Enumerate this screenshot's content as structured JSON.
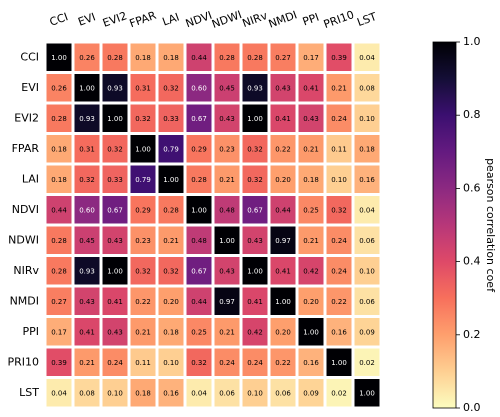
{
  "chart_data": {
    "type": "heatmap",
    "categories": [
      "CCI",
      "EVI",
      "EVI2",
      "FPAR",
      "LAI",
      "NDVI",
      "NDWI",
      "NIRv",
      "NMDI",
      "PPI",
      "PRI10",
      "LST"
    ],
    "values": [
      [
        1,
        0.26,
        0.28,
        0.18,
        0.18,
        0.44,
        0.28,
        0.28,
        0.27,
        0.17,
        0.39,
        0.04
      ],
      [
        0.26,
        1,
        0.93,
        0.31,
        0.32,
        0.6,
        0.45,
        0.93,
        0.43,
        0.41,
        0.21,
        0.08
      ],
      [
        0.28,
        0.93,
        1,
        0.32,
        0.33,
        0.67,
        0.43,
        1,
        0.41,
        0.43,
        0.24,
        0.1
      ],
      [
        0.18,
        0.31,
        0.32,
        1,
        0.79,
        0.29,
        0.23,
        0.32,
        0.22,
        0.21,
        0.11,
        0.18
      ],
      [
        0.18,
        0.32,
        0.33,
        0.79,
        1,
        0.28,
        0.21,
        0.32,
        0.2,
        0.18,
        0.1,
        0.16
      ],
      [
        0.44,
        0.6,
        0.67,
        0.29,
        0.28,
        1,
        0.48,
        0.67,
        0.44,
        0.25,
        0.32,
        0.04
      ],
      [
        0.28,
        0.45,
        0.43,
        0.23,
        0.21,
        0.48,
        1,
        0.43,
        0.97,
        0.21,
        0.24,
        0.06
      ],
      [
        0.28,
        0.93,
        1,
        0.32,
        0.32,
        0.67,
        0.43,
        1,
        0.41,
        0.42,
        0.24,
        0.1
      ],
      [
        0.27,
        0.43,
        0.41,
        0.22,
        0.2,
        0.44,
        0.97,
        0.41,
        1,
        0.2,
        0.22,
        0.06
      ],
      [
        0.17,
        0.41,
        0.43,
        0.21,
        0.18,
        0.25,
        0.21,
        0.42,
        0.2,
        1,
        0.16,
        0.09
      ],
      [
        0.39,
        0.21,
        0.24,
        0.11,
        0.1,
        0.32,
        0.24,
        0.24,
        0.22,
        0.16,
        1,
        0.02
      ],
      [
        0.04,
        0.08,
        0.1,
        0.18,
        0.16,
        0.04,
        0.06,
        0.1,
        0.06,
        0.09,
        0.02,
        1
      ]
    ],
    "value_labels": [
      [
        "1.00",
        "0.26",
        "0.28",
        "0.18",
        "0.18",
        "0.44",
        "0.28",
        "0.28",
        "0.27",
        "0.17",
        "0.39",
        "0.04"
      ],
      [
        "0.26",
        "1.00",
        "0.93",
        "0.31",
        "0.32",
        "0.60",
        "0.45",
        "0.93",
        "0.43",
        "0.41",
        "0.21",
        "0.08"
      ],
      [
        "0.28",
        "0.93",
        "1.00",
        "0.32",
        "0.33",
        "0.67",
        "0.43",
        "1.00",
        "0.41",
        "0.43",
        "0.24",
        "0.10"
      ],
      [
        "0.18",
        "0.31",
        "0.32",
        "1.00",
        "0.79",
        "0.29",
        "0.23",
        "0.32",
        "0.22",
        "0.21",
        "0.11",
        "0.18"
      ],
      [
        "0.18",
        "0.32",
        "0.33",
        "0.79",
        "1.00",
        "0.28",
        "0.21",
        "0.32",
        "0.20",
        "0.18",
        "0.10",
        "0.16"
      ],
      [
        "0.44",
        "0.60",
        "0.67",
        "0.29",
        "0.28",
        "1.00",
        "0.48",
        "0.67",
        "0.44",
        "0.25",
        "0.32",
        "0.04"
      ],
      [
        "0.28",
        "0.45",
        "0.43",
        "0.23",
        "0.21",
        "0.48",
        "1.00",
        "0.43",
        "0.97",
        "0.21",
        "0.24",
        "0.06"
      ],
      [
        "0.28",
        "0.93",
        "1.00",
        "0.32",
        "0.32",
        "0.67",
        "0.43",
        "1.00",
        "0.41",
        "0.42",
        "0.24",
        "0.10"
      ],
      [
        "0.27",
        "0.43",
        "0.41",
        "0.22",
        "0.20",
        "0.44",
        "0.97",
        "0.41",
        "1.00",
        "0.20",
        "0.22",
        "0.06"
      ],
      [
        "0.17",
        "0.41",
        "0.43",
        "0.21",
        "0.18",
        "0.25",
        "0.21",
        "0.42",
        "0.20",
        "1.00",
        "0.16",
        "0.09"
      ],
      [
        "0.39",
        "0.21",
        "0.24",
        "0.11",
        "0.10",
        "0.32",
        "0.24",
        "0.24",
        "0.22",
        "0.16",
        "1.00",
        "0.02"
      ],
      [
        "0.04",
        "0.08",
        "0.10",
        "0.18",
        "0.16",
        "0.04",
        "0.06",
        "0.10",
        "0.06",
        "0.09",
        "0.02",
        "1.00"
      ]
    ],
    "colormap": "magma_r",
    "colorbar_label": "pearson correlation coef",
    "zlim": [
      0,
      1
    ],
    "zticks": [
      {
        "value": 0,
        "label": "0.0"
      },
      0.2,
      0.4,
      0.6,
      0.8,
      {
        "value": 1,
        "label": "1.0"
      }
    ]
  }
}
